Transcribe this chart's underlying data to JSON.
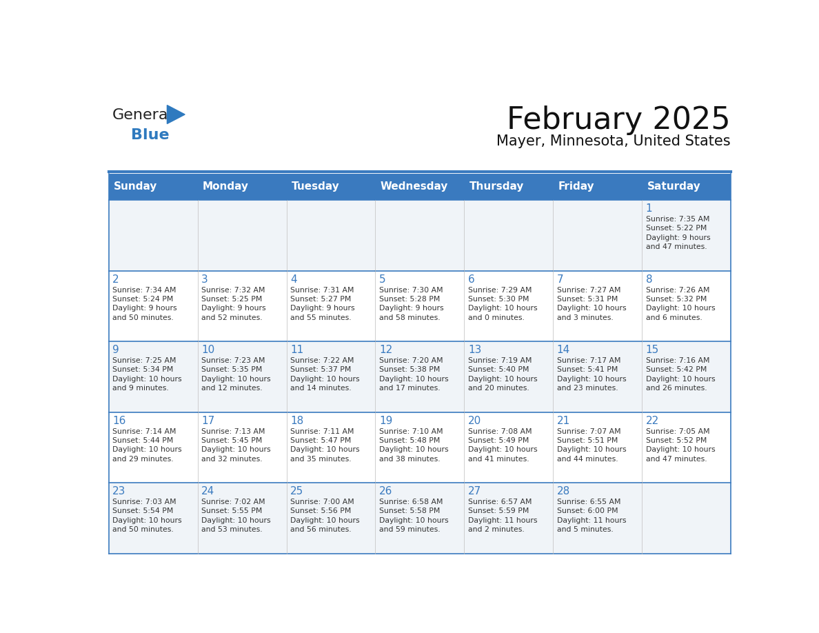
{
  "title": "February 2025",
  "subtitle": "Mayer, Minnesota, United States",
  "days_of_week": [
    "Sunday",
    "Monday",
    "Tuesday",
    "Wednesday",
    "Thursday",
    "Friday",
    "Saturday"
  ],
  "header_bg": "#3a7abf",
  "header_text": "#ffffff",
  "cell_bg_odd": "#f0f4f8",
  "cell_bg_even": "#ffffff",
  "border_color": "#3a7abf",
  "day_number_color": "#3a7abf",
  "text_color": "#333333",
  "logo_general_color": "#222222",
  "logo_blue_color": "#2f7abf",
  "calendar_data": [
    [
      {
        "day": null,
        "sunrise": null,
        "sunset": null,
        "daylight": null
      },
      {
        "day": null,
        "sunrise": null,
        "sunset": null,
        "daylight": null
      },
      {
        "day": null,
        "sunrise": null,
        "sunset": null,
        "daylight": null
      },
      {
        "day": null,
        "sunrise": null,
        "sunset": null,
        "daylight": null
      },
      {
        "day": null,
        "sunrise": null,
        "sunset": null,
        "daylight": null
      },
      {
        "day": null,
        "sunrise": null,
        "sunset": null,
        "daylight": null
      },
      {
        "day": 1,
        "sunrise": "7:35 AM",
        "sunset": "5:22 PM",
        "daylight": "9 hours\nand 47 minutes."
      }
    ],
    [
      {
        "day": 2,
        "sunrise": "7:34 AM",
        "sunset": "5:24 PM",
        "daylight": "9 hours\nand 50 minutes."
      },
      {
        "day": 3,
        "sunrise": "7:32 AM",
        "sunset": "5:25 PM",
        "daylight": "9 hours\nand 52 minutes."
      },
      {
        "day": 4,
        "sunrise": "7:31 AM",
        "sunset": "5:27 PM",
        "daylight": "9 hours\nand 55 minutes."
      },
      {
        "day": 5,
        "sunrise": "7:30 AM",
        "sunset": "5:28 PM",
        "daylight": "9 hours\nand 58 minutes."
      },
      {
        "day": 6,
        "sunrise": "7:29 AM",
        "sunset": "5:30 PM",
        "daylight": "10 hours\nand 0 minutes."
      },
      {
        "day": 7,
        "sunrise": "7:27 AM",
        "sunset": "5:31 PM",
        "daylight": "10 hours\nand 3 minutes."
      },
      {
        "day": 8,
        "sunrise": "7:26 AM",
        "sunset": "5:32 PM",
        "daylight": "10 hours\nand 6 minutes."
      }
    ],
    [
      {
        "day": 9,
        "sunrise": "7:25 AM",
        "sunset": "5:34 PM",
        "daylight": "10 hours\nand 9 minutes."
      },
      {
        "day": 10,
        "sunrise": "7:23 AM",
        "sunset": "5:35 PM",
        "daylight": "10 hours\nand 12 minutes."
      },
      {
        "day": 11,
        "sunrise": "7:22 AM",
        "sunset": "5:37 PM",
        "daylight": "10 hours\nand 14 minutes."
      },
      {
        "day": 12,
        "sunrise": "7:20 AM",
        "sunset": "5:38 PM",
        "daylight": "10 hours\nand 17 minutes."
      },
      {
        "day": 13,
        "sunrise": "7:19 AM",
        "sunset": "5:40 PM",
        "daylight": "10 hours\nand 20 minutes."
      },
      {
        "day": 14,
        "sunrise": "7:17 AM",
        "sunset": "5:41 PM",
        "daylight": "10 hours\nand 23 minutes."
      },
      {
        "day": 15,
        "sunrise": "7:16 AM",
        "sunset": "5:42 PM",
        "daylight": "10 hours\nand 26 minutes."
      }
    ],
    [
      {
        "day": 16,
        "sunrise": "7:14 AM",
        "sunset": "5:44 PM",
        "daylight": "10 hours\nand 29 minutes."
      },
      {
        "day": 17,
        "sunrise": "7:13 AM",
        "sunset": "5:45 PM",
        "daylight": "10 hours\nand 32 minutes."
      },
      {
        "day": 18,
        "sunrise": "7:11 AM",
        "sunset": "5:47 PM",
        "daylight": "10 hours\nand 35 minutes."
      },
      {
        "day": 19,
        "sunrise": "7:10 AM",
        "sunset": "5:48 PM",
        "daylight": "10 hours\nand 38 minutes."
      },
      {
        "day": 20,
        "sunrise": "7:08 AM",
        "sunset": "5:49 PM",
        "daylight": "10 hours\nand 41 minutes."
      },
      {
        "day": 21,
        "sunrise": "7:07 AM",
        "sunset": "5:51 PM",
        "daylight": "10 hours\nand 44 minutes."
      },
      {
        "day": 22,
        "sunrise": "7:05 AM",
        "sunset": "5:52 PM",
        "daylight": "10 hours\nand 47 minutes."
      }
    ],
    [
      {
        "day": 23,
        "sunrise": "7:03 AM",
        "sunset": "5:54 PM",
        "daylight": "10 hours\nand 50 minutes."
      },
      {
        "day": 24,
        "sunrise": "7:02 AM",
        "sunset": "5:55 PM",
        "daylight": "10 hours\nand 53 minutes."
      },
      {
        "day": 25,
        "sunrise": "7:00 AM",
        "sunset": "5:56 PM",
        "daylight": "10 hours\nand 56 minutes."
      },
      {
        "day": 26,
        "sunrise": "6:58 AM",
        "sunset": "5:58 PM",
        "daylight": "10 hours\nand 59 minutes."
      },
      {
        "day": 27,
        "sunrise": "6:57 AM",
        "sunset": "5:59 PM",
        "daylight": "11 hours\nand 2 minutes."
      },
      {
        "day": 28,
        "sunrise": "6:55 AM",
        "sunset": "6:00 PM",
        "daylight": "11 hours\nand 5 minutes."
      },
      {
        "day": null,
        "sunrise": null,
        "sunset": null,
        "daylight": null
      }
    ]
  ]
}
